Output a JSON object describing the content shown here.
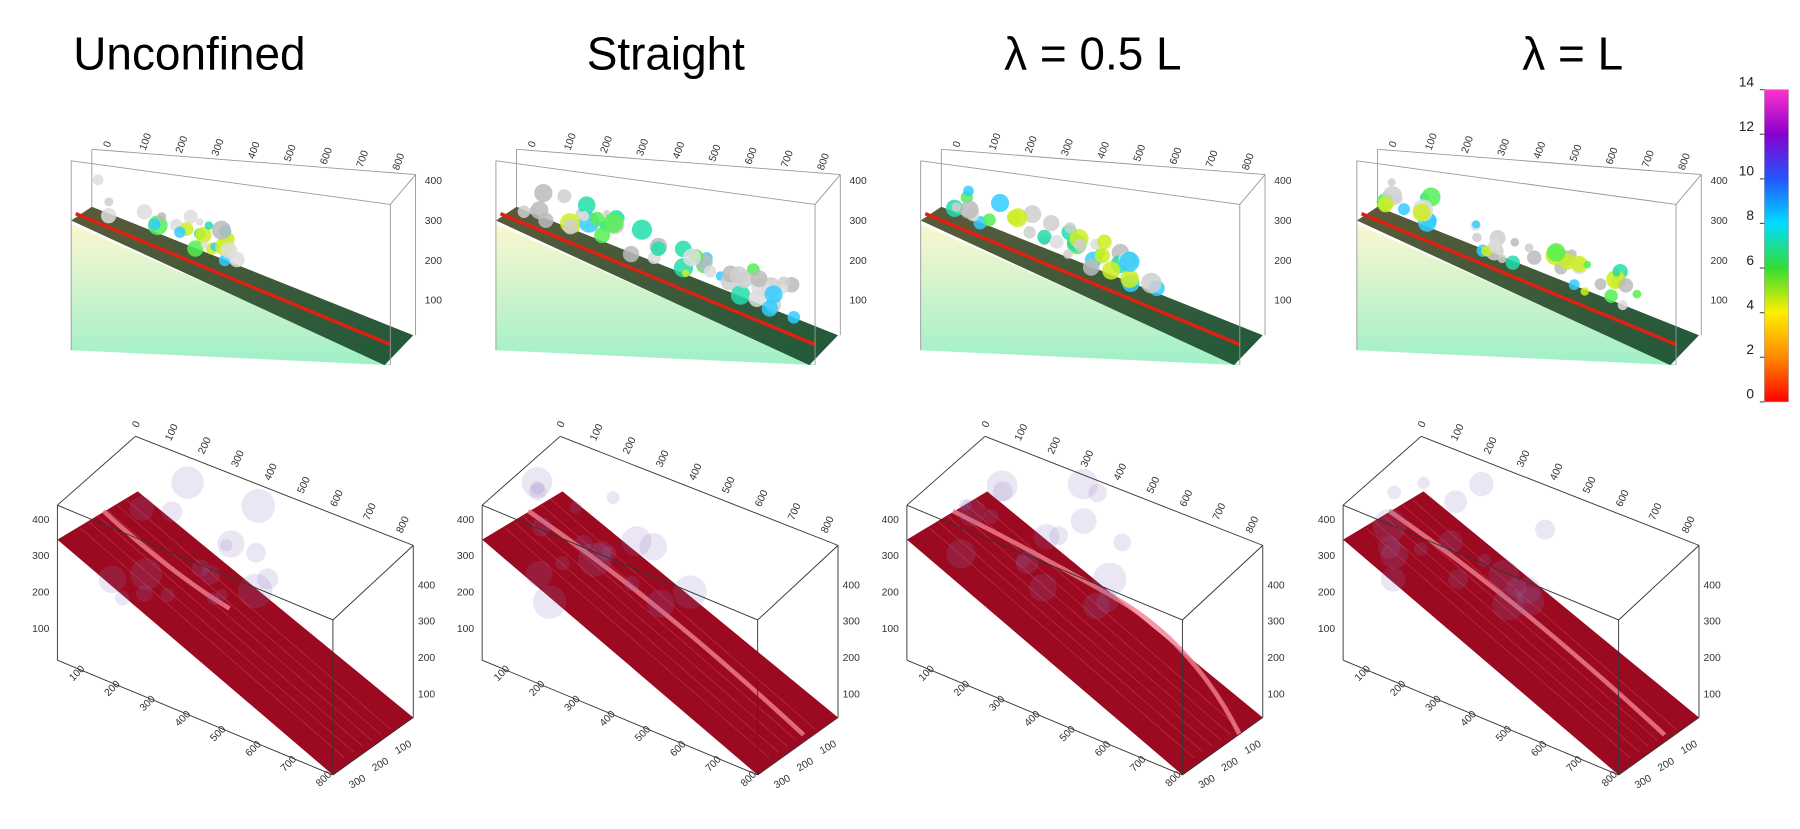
{
  "columns": [
    "Unconfined",
    "Straight",
    "λ = 0.5 L",
    "λ = L"
  ],
  "colorbar": {
    "ticks": [
      0,
      2,
      4,
      6,
      8,
      10,
      12,
      14
    ],
    "colors": [
      "#ff0000",
      "#ff8800",
      "#ffee00",
      "#33dd33",
      "#00ddff",
      "#2255ff",
      "#8800cc",
      "#ff33cc"
    ]
  },
  "top_axes": {
    "length_ticks": [
      0,
      100,
      200,
      300,
      400,
      500,
      600,
      700,
      800
    ],
    "height_ticks": [
      100,
      200,
      300,
      400
    ]
  },
  "bottom_axes": {
    "length_ticks": [
      0,
      100,
      200,
      300,
      400,
      500,
      600,
      700,
      800
    ],
    "front_length_ticks": [
      100,
      200,
      300,
      400,
      500,
      600,
      700,
      800
    ],
    "height_ticks": [
      100,
      200,
      300,
      400
    ],
    "width_ticks": [
      100,
      200,
      300
    ]
  }
}
